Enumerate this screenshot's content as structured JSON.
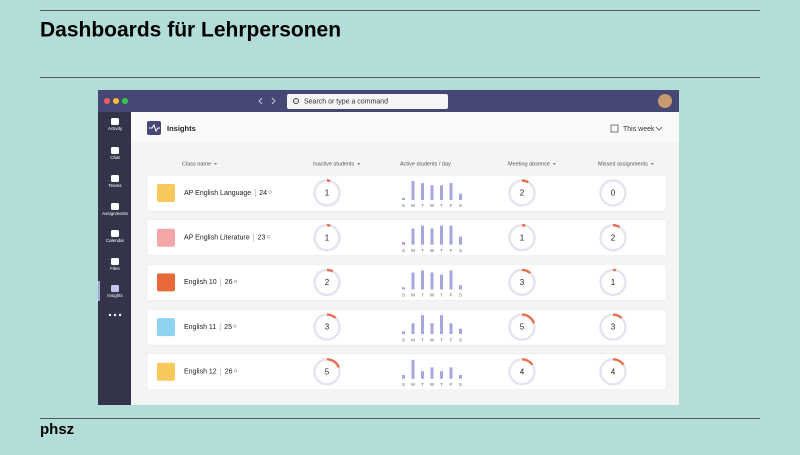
{
  "slide": {
    "title": "Dashboards für Lehrpersonen",
    "footer": "phsz"
  },
  "app": {
    "search": "Search or type a command",
    "sidebar": [
      "Activity",
      "Chat",
      "Teams",
      "Assignments",
      "Calendar",
      "Files",
      "Insights"
    ],
    "page_title": "Insights",
    "period": "This week",
    "columns": [
      "Class name",
      "Inactive students",
      "Active students / day",
      "Meeting absence",
      "Missed assignments"
    ],
    "days": [
      "S",
      "M",
      "T",
      "W",
      "T",
      "F",
      "S"
    ],
    "rows": [
      {
        "class": "AP English Language",
        "students": 24,
        "inactive": 1,
        "activity": [
          1,
          9,
          8,
          7,
          7,
          8,
          3
        ],
        "meeting_absence": 2,
        "missed": 0
      },
      {
        "class": "AP English Literature",
        "students": 23,
        "inactive": 1,
        "activity": [
          1,
          6,
          7,
          6,
          7,
          7,
          3
        ],
        "meeting_absence": 1,
        "missed": 2
      },
      {
        "class": "English 10",
        "students": 26,
        "inactive": 2,
        "activity": [
          1,
          8,
          9,
          8,
          7,
          9,
          2
        ],
        "meeting_absence": 3,
        "missed": 1
      },
      {
        "class": "English 11",
        "students": 25,
        "inactive": 3,
        "activity": [
          1,
          4,
          7,
          4,
          7,
          4,
          2
        ],
        "meeting_absence": 5,
        "missed": 3
      },
      {
        "class": "English 12",
        "students": 26,
        "inactive": 5,
        "activity": [
          1,
          5,
          2,
          3,
          2,
          3,
          1
        ],
        "meeting_absence": 4,
        "missed": 4
      }
    ]
  }
}
